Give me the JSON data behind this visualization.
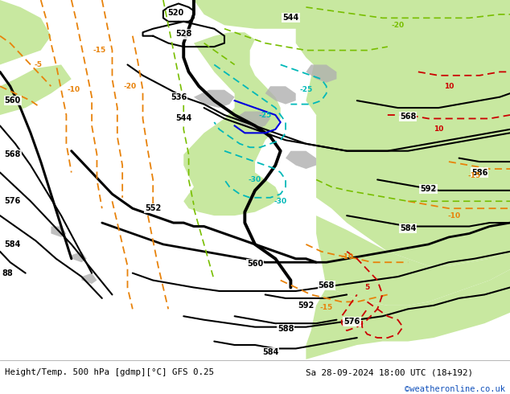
{
  "title_left": "Height/Temp. 500 hPa [gdmp][°C] GFS 0.25",
  "title_right": "Sa 28-09-2024 18:00 UTC (18+192)",
  "watermark": "©weatheronline.co.uk",
  "bg_sea": "#e8e8e8",
  "bg_land_light": "#c8e8a0",
  "bg_gray": "#b0b0b0",
  "c_black": "#000000",
  "c_orange": "#e8820a",
  "c_red": "#cc0000",
  "c_green": "#78be00",
  "c_cyan": "#00b8b8",
  "c_blue": "#0000dd",
  "c_white": "#ffffff",
  "c_title": "#000000",
  "c_watermark": "#1050bb",
  "fig_width": 6.34,
  "fig_height": 4.9,
  "dpi": 100
}
